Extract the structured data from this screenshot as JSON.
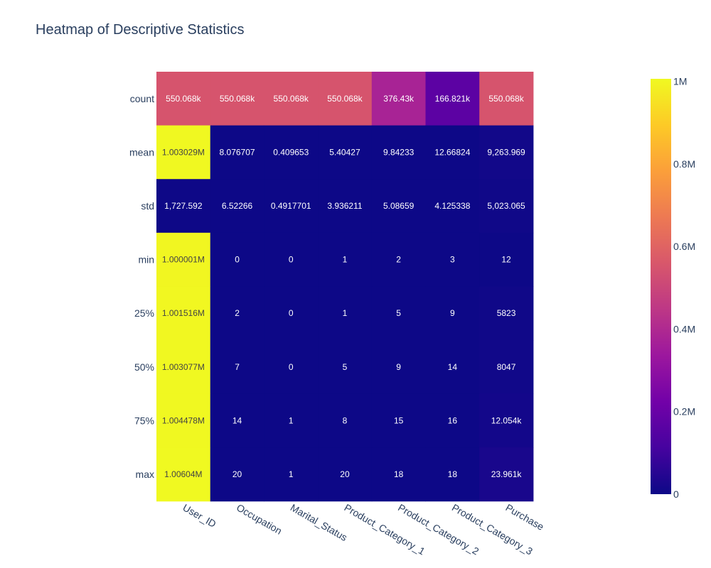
{
  "chart_data": {
    "type": "heatmap",
    "title": "Heatmap of Descriptive Statistics",
    "xlabel": "",
    "ylabel": "",
    "x_categories": [
      "User_ID",
      "Occupation",
      "Marital_Status",
      "Product_Category_1",
      "Product_Category_2",
      "Product_Category_3",
      "Purchase"
    ],
    "y_categories": [
      "count",
      "mean",
      "std",
      "min",
      "25%",
      "50%",
      "75%",
      "max"
    ],
    "z": [
      [
        550068,
        550068,
        550068,
        550068,
        376430,
        166821,
        550068
      ],
      [
        1003029,
        8.076707,
        0.409653,
        5.40427,
        9.84233,
        12.66824,
        9263.969
      ],
      [
        1727.592,
        6.52266,
        0.4917701,
        3.936211,
        5.08659,
        4.125338,
        5023.065
      ],
      [
        1000001,
        0,
        0,
        1,
        2,
        3,
        12
      ],
      [
        1001516,
        2,
        0,
        1,
        5,
        9,
        5823
      ],
      [
        1003077,
        7,
        0,
        5,
        9,
        14,
        8047
      ],
      [
        1004478,
        14,
        1,
        8,
        15,
        16,
        12054
      ],
      [
        1006040,
        20,
        1,
        20,
        18,
        18,
        23961
      ]
    ],
    "cell_labels": [
      [
        "550.068k",
        "550.068k",
        "550.068k",
        "550.068k",
        "376.43k",
        "166.821k",
        "550.068k"
      ],
      [
        "1.003029M",
        "8.076707",
        "0.409653",
        "5.40427",
        "9.84233",
        "12.66824",
        "9,263.969"
      ],
      [
        "1,727.592",
        "6.52266",
        "0.4917701",
        "3.936211",
        "5.08659",
        "4.125338",
        "5,023.065"
      ],
      [
        "1.000001M",
        "0",
        "0",
        "1",
        "2",
        "3",
        "12"
      ],
      [
        "1.001516M",
        "2",
        "0",
        "1",
        "5",
        "9",
        "5823"
      ],
      [
        "1.003077M",
        "7",
        "0",
        "5",
        "9",
        "14",
        "8047"
      ],
      [
        "1.004478M",
        "14",
        "1",
        "8",
        "15",
        "16",
        "12.054k"
      ],
      [
        "1.00604M",
        "20",
        "1",
        "20",
        "18",
        "18",
        "23.961k"
      ]
    ],
    "colorscale": [
      "#0d0887",
      "#46039f",
      "#7201a8",
      "#9c179e",
      "#bd3786",
      "#d8576b",
      "#ed7953",
      "#fb9f3a",
      "#fdca26",
      "#f0f921"
    ],
    "zmin": 0,
    "zmax": 1006040,
    "colorbar": {
      "ticks": [
        0,
        200000,
        400000,
        600000,
        800000,
        1000000
      ],
      "tick_labels": [
        "0",
        "0.2M",
        "0.4M",
        "0.6M",
        "0.8M",
        "1M"
      ]
    }
  }
}
